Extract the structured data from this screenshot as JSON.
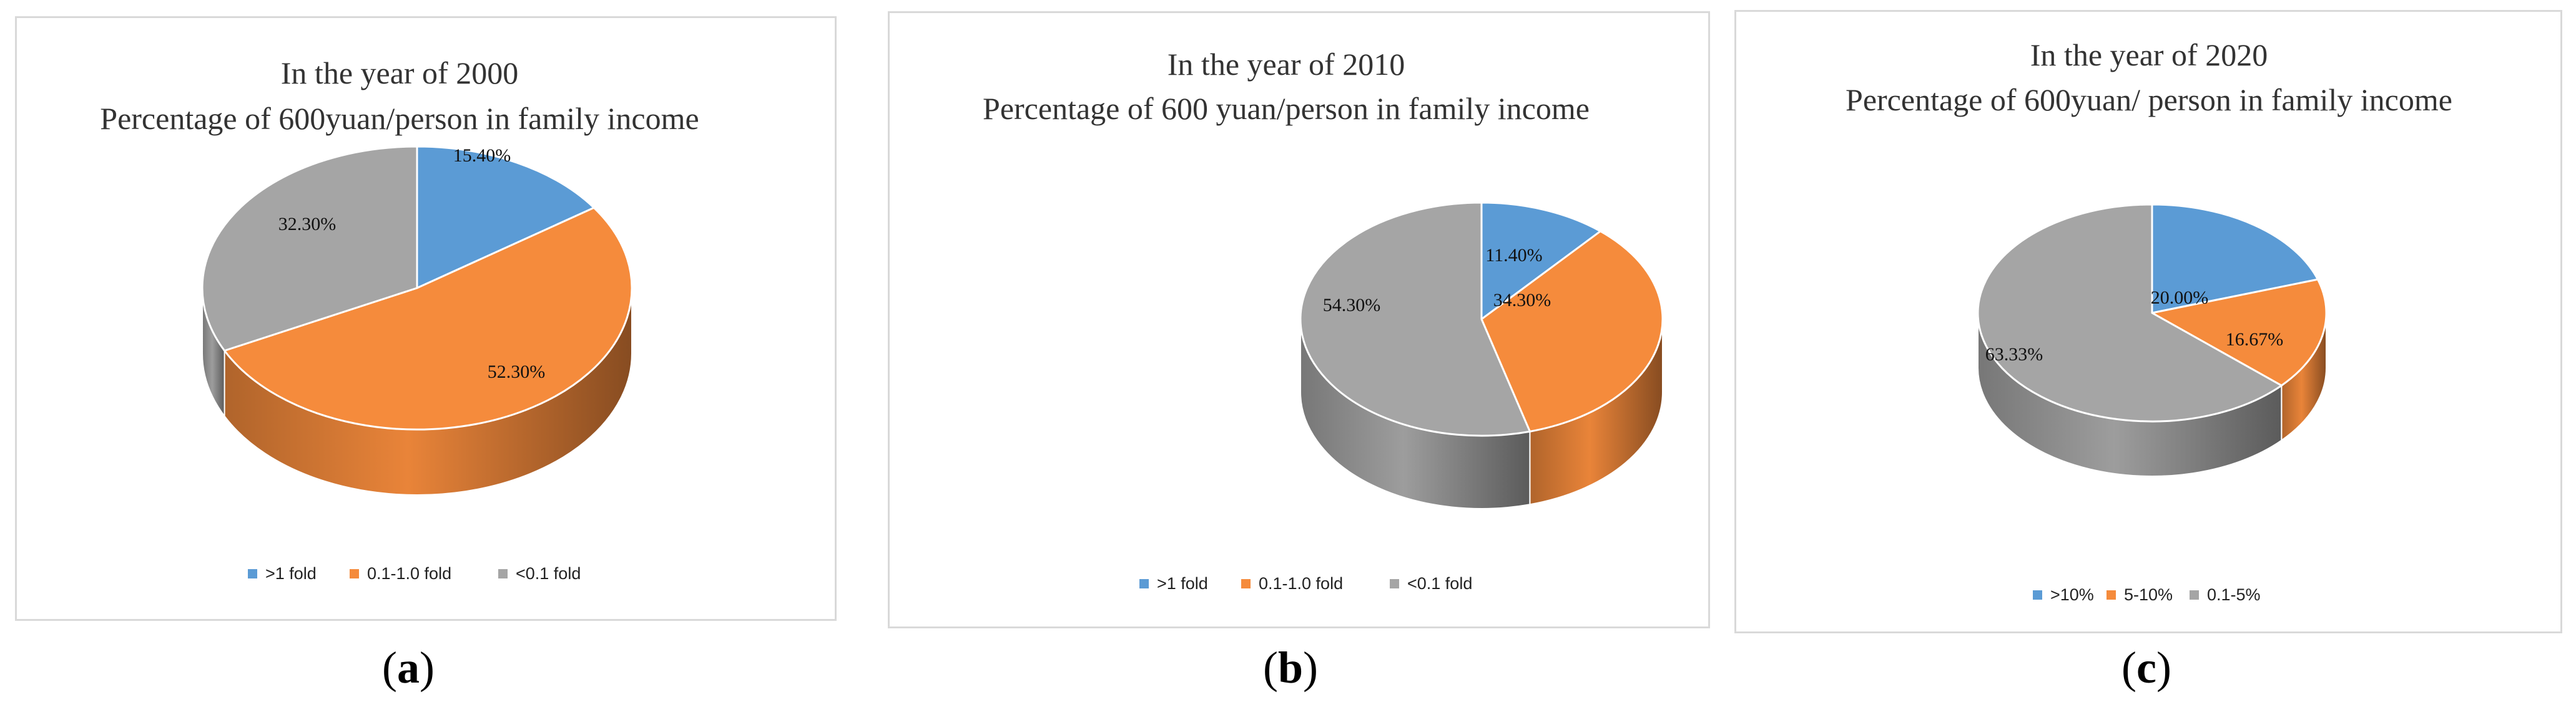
{
  "chart_data": [
    {
      "type": "pie",
      "title": "In the year of 2000",
      "subtitle": "Percentage of 600yuan/person in family income",
      "categories": [
        ">1 fold",
        "0.1-1.0 fold",
        "<0.1 fold"
      ],
      "values": [
        15.4,
        52.3,
        32.3
      ],
      "labels": [
        "15.40%",
        "52.30%",
        "32.30%"
      ],
      "colors": [
        "#5b9bd5",
        "#f58b3c",
        "#a5a5a5"
      ],
      "legend_position": "bottom",
      "style": "3d"
    },
    {
      "type": "pie",
      "title": "In the year of 2010",
      "subtitle": "Percentage of 600 yuan/person in family income",
      "categories": [
        ">1 fold",
        "0.1-1.0 fold",
        "<0.1 fold"
      ],
      "values": [
        11.4,
        34.3,
        54.3
      ],
      "labels": [
        "11.40%",
        "34.30%",
        "54.30%"
      ],
      "colors": [
        "#5b9bd5",
        "#f58b3c",
        "#a5a5a5"
      ],
      "legend_position": "bottom",
      "style": "3d"
    },
    {
      "type": "pie",
      "title": "In the year of 2020",
      "subtitle": "Percentage of 600yuan/ person in family income",
      "categories": [
        ">10%",
        "5-10%",
        "0.1-5%"
      ],
      "values": [
        20.0,
        16.67,
        63.33
      ],
      "labels": [
        "20.00%",
        "16.67%",
        "63.33%"
      ],
      "colors": [
        "#5b9bd5",
        "#f58b3c",
        "#a5a5a5"
      ],
      "legend_position": "bottom",
      "style": "3d"
    }
  ],
  "captions": {
    "a": {
      "open": "(",
      "letter": "a",
      "close": ")"
    },
    "b": {
      "open": "(",
      "letter": "b",
      "close": ")"
    },
    "c": {
      "open": "(",
      "letter": "c",
      "close": ")"
    }
  }
}
